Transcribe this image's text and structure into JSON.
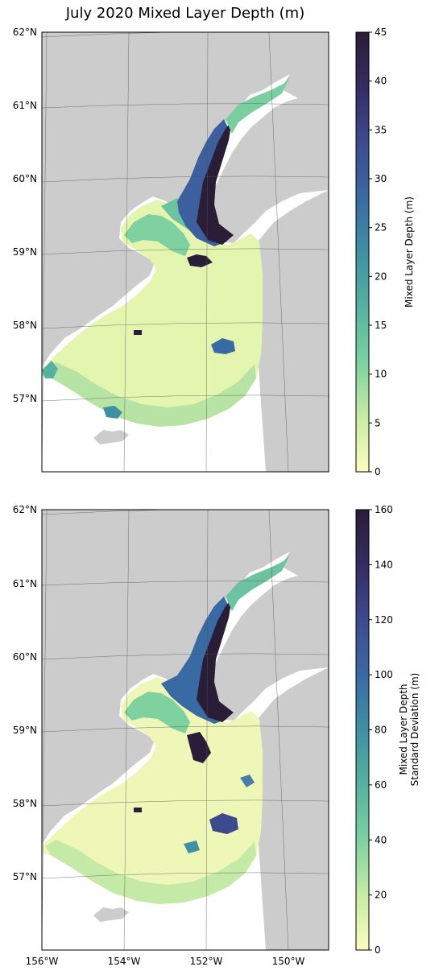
{
  "title": "July 2020 Mixed Layer Depth (m)",
  "colors": {
    "land": "#cccccc",
    "ocean_bg": "#ffffff",
    "grid": "#555555"
  },
  "colormap": [
    "#fcfdbf",
    "#c8eba6",
    "#7dd1a0",
    "#55b2a0",
    "#4090a2",
    "#3a6aa3",
    "#3d4a8e",
    "#352c62",
    "#2a1d38"
  ],
  "lat_labels": [
    "62°N",
    "61°N",
    "60°N",
    "59°N",
    "58°N",
    "57°N"
  ],
  "lon_labels": [
    "156°W",
    "154°W",
    "152°W",
    "150°W"
  ],
  "panels": [
    {
      "name": "mean",
      "colorbar_label_lines": [
        "Mixed Layer Depth (m)"
      ],
      "colorbar_ticks": [
        "45",
        "40",
        "35",
        "30",
        "25",
        "20",
        "15",
        "10",
        "5",
        "0"
      ]
    },
    {
      "name": "stddev",
      "colorbar_label_lines": [
        "Mixed Layer Depth",
        "Standard Deviation (m)"
      ],
      "colorbar_ticks": [
        "160",
        "140",
        "120",
        "100",
        "80",
        "60",
        "40",
        "20",
        "0"
      ]
    }
  ]
}
